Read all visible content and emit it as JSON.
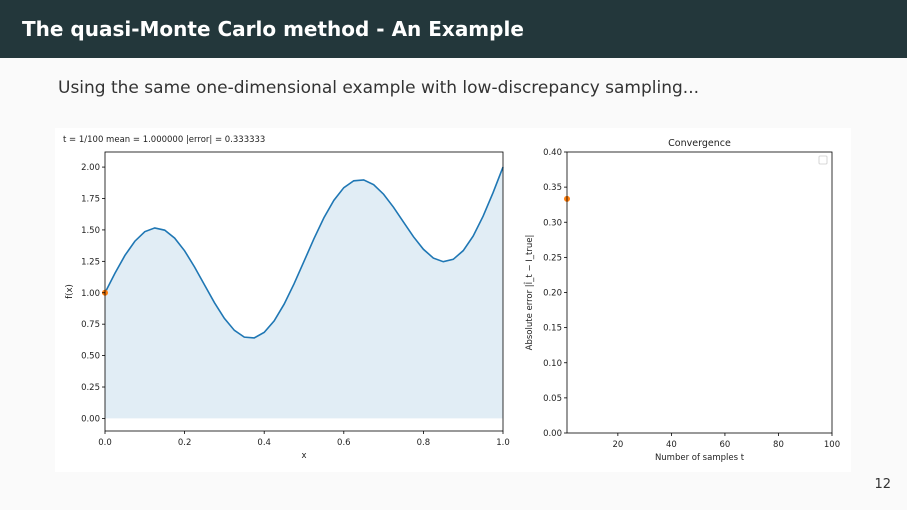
{
  "header": {
    "title": "The quasi-Monte Carlo method - An Example"
  },
  "subtitle": "Using the same one-dimensional example with low-discrepancy sampling...",
  "page_number": "12",
  "colors": {
    "header_bg": "#23373b",
    "line": "#1f77b4",
    "fill": "#e1edf5",
    "point": "#ff7f0e"
  },
  "chart_data": [
    {
      "type": "area",
      "title": "t = 1/100   mean = 1.000000   |error| = 0.333333",
      "xlabel": "x",
      "ylabel": "f(x)",
      "xlim": [
        0,
        1
      ],
      "ylim": [
        -0.1,
        2.12
      ],
      "xticks": [
        0,
        0.2,
        0.4,
        0.6,
        0.8,
        1.0
      ],
      "xtick_labels": [
        "0.0",
        "0.2",
        "0.4",
        "0.6",
        "0.8",
        "1.0"
      ],
      "yticks": [
        0,
        0.25,
        0.5,
        0.75,
        1,
        1.25,
        1.5,
        1.75,
        2
      ],
      "ytick_labels": [
        "0.00",
        "0.25",
        "0.50",
        "0.75",
        "1.00",
        "1.25",
        "1.50",
        "1.75",
        "2.00"
      ],
      "x": [
        0,
        0.025,
        0.05,
        0.075,
        0.1,
        0.125,
        0.15,
        0.175,
        0.2,
        0.225,
        0.25,
        0.275,
        0.3,
        0.325,
        0.35,
        0.375,
        0.4,
        0.425,
        0.45,
        0.475,
        0.5,
        0.525,
        0.55,
        0.575,
        0.6,
        0.625,
        0.65,
        0.675,
        0.7,
        0.725,
        0.75,
        0.775,
        0.8,
        0.825,
        0.85,
        0.875,
        0.9,
        0.925,
        0.95,
        0.975,
        1
      ],
      "y": [
        1.0,
        1.155,
        1.297,
        1.41,
        1.486,
        1.516,
        1.498,
        1.435,
        1.334,
        1.205,
        1.0625,
        0.921,
        0.796,
        0.701,
        0.647,
        0.641,
        0.685,
        0.776,
        0.909,
        1.071,
        1.25,
        1.43,
        1.597,
        1.735,
        1.836,
        1.891,
        1.898,
        1.86,
        1.784,
        1.68,
        1.5625,
        1.446,
        1.346,
        1.276,
        1.247,
        1.266,
        1.335,
        1.451,
        1.609,
        1.796,
        2.0
      ],
      "samples": [
        {
          "x": 0,
          "y": 1.0
        }
      ]
    },
    {
      "type": "scatter",
      "title": "Convergence",
      "xlabel": "Number of samples t",
      "ylabel": "Absolute error |Î_t − I_true|",
      "xlim": [
        1,
        100
      ],
      "ylim": [
        0,
        0.4
      ],
      "xticks": [
        20,
        40,
        60,
        80,
        100
      ],
      "xtick_labels": [
        "20",
        "40",
        "60",
        "80",
        "100"
      ],
      "yticks": [
        0,
        0.05,
        0.1,
        0.15,
        0.2,
        0.25,
        0.3,
        0.35,
        0.4
      ],
      "ytick_labels": [
        "0.00",
        "0.05",
        "0.10",
        "0.15",
        "0.20",
        "0.25",
        "0.30",
        "0.35",
        "0.40"
      ],
      "points": [
        {
          "x": 1,
          "y": 0.333333
        }
      ],
      "legend": "top-right"
    }
  ]
}
